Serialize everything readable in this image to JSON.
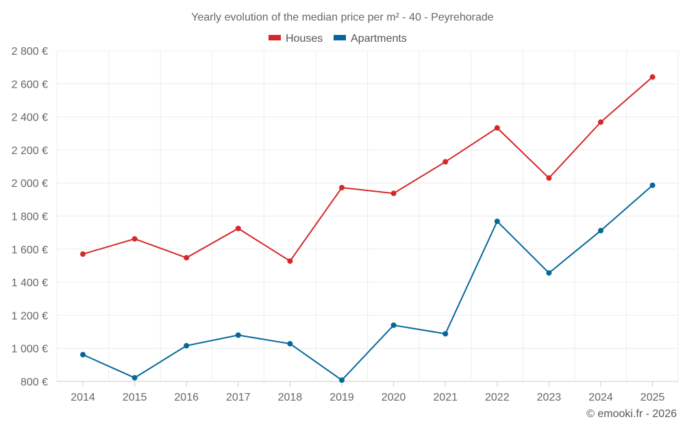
{
  "chart_data": {
    "type": "line",
    "title": "Yearly evolution of the median price per m² - 40 - Peyrehorade",
    "xlabel": "",
    "ylabel": "",
    "categories": [
      "2014",
      "2015",
      "2016",
      "2017",
      "2018",
      "2019",
      "2020",
      "2021",
      "2022",
      "2023",
      "2024",
      "2025"
    ],
    "ylim": [
      800,
      2800
    ],
    "yticks": [
      800,
      1000,
      1200,
      1400,
      1600,
      1800,
      2000,
      2200,
      2400,
      2600,
      2800
    ],
    "ytick_labels": [
      "800 €",
      "1 000 €",
      "1 200 €",
      "1 400 €",
      "1 600 €",
      "1 800 €",
      "2 000 €",
      "2 200 €",
      "2 400 €",
      "2 600 €",
      "2 800 €"
    ],
    "grid": true,
    "legend_position": "top-center",
    "series": [
      {
        "name": "Houses",
        "color": "#d62728",
        "values": [
          1570,
          1662,
          1548,
          1725,
          1528,
          1972,
          1937,
          2128,
          2333,
          2030,
          2368,
          2641
        ]
      },
      {
        "name": "Apartments",
        "color": "#05679b",
        "values": [
          962,
          822,
          1016,
          1080,
          1028,
          808,
          1140,
          1088,
          1768,
          1456,
          1712,
          1986
        ]
      }
    ]
  },
  "credit": "© emooki.fr - 2026"
}
